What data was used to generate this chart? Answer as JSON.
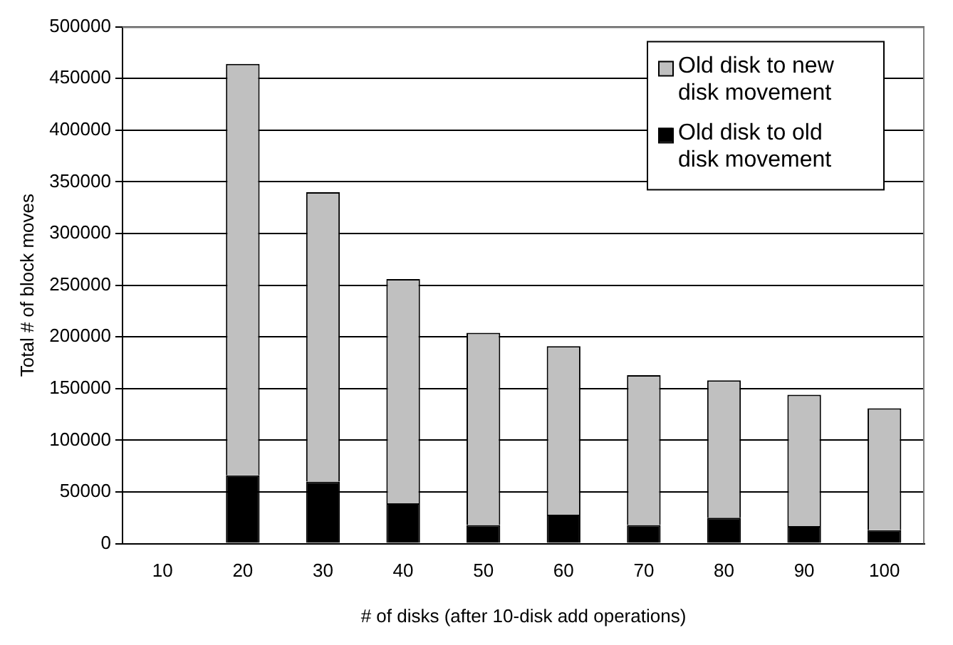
{
  "chart_data": {
    "type": "bar",
    "stacked": true,
    "xlabel": "# of disks (after 10-disk add operations)",
    "ylabel": "Total # of block moves",
    "categories": [
      "10",
      "20",
      "30",
      "40",
      "50",
      "60",
      "70",
      "80",
      "90",
      "100"
    ],
    "series": [
      {
        "name": "Old disk to old disk movement",
        "color": "#000000",
        "values": [
          null,
          66000,
          60000,
          39000,
          18000,
          28000,
          18000,
          25000,
          17000,
          13000
        ]
      },
      {
        "name": "Old disk to new disk movement",
        "color": "#c0c0c0",
        "values": [
          null,
          398000,
          280000,
          217000,
          186000,
          163000,
          145000,
          133000,
          127000,
          118000
        ]
      }
    ],
    "ylim": [
      0,
      500000
    ],
    "yticks": [
      0,
      50000,
      100000,
      150000,
      200000,
      250000,
      300000,
      350000,
      400000,
      450000,
      500000
    ],
    "grid": "y",
    "legend": "top right"
  }
}
